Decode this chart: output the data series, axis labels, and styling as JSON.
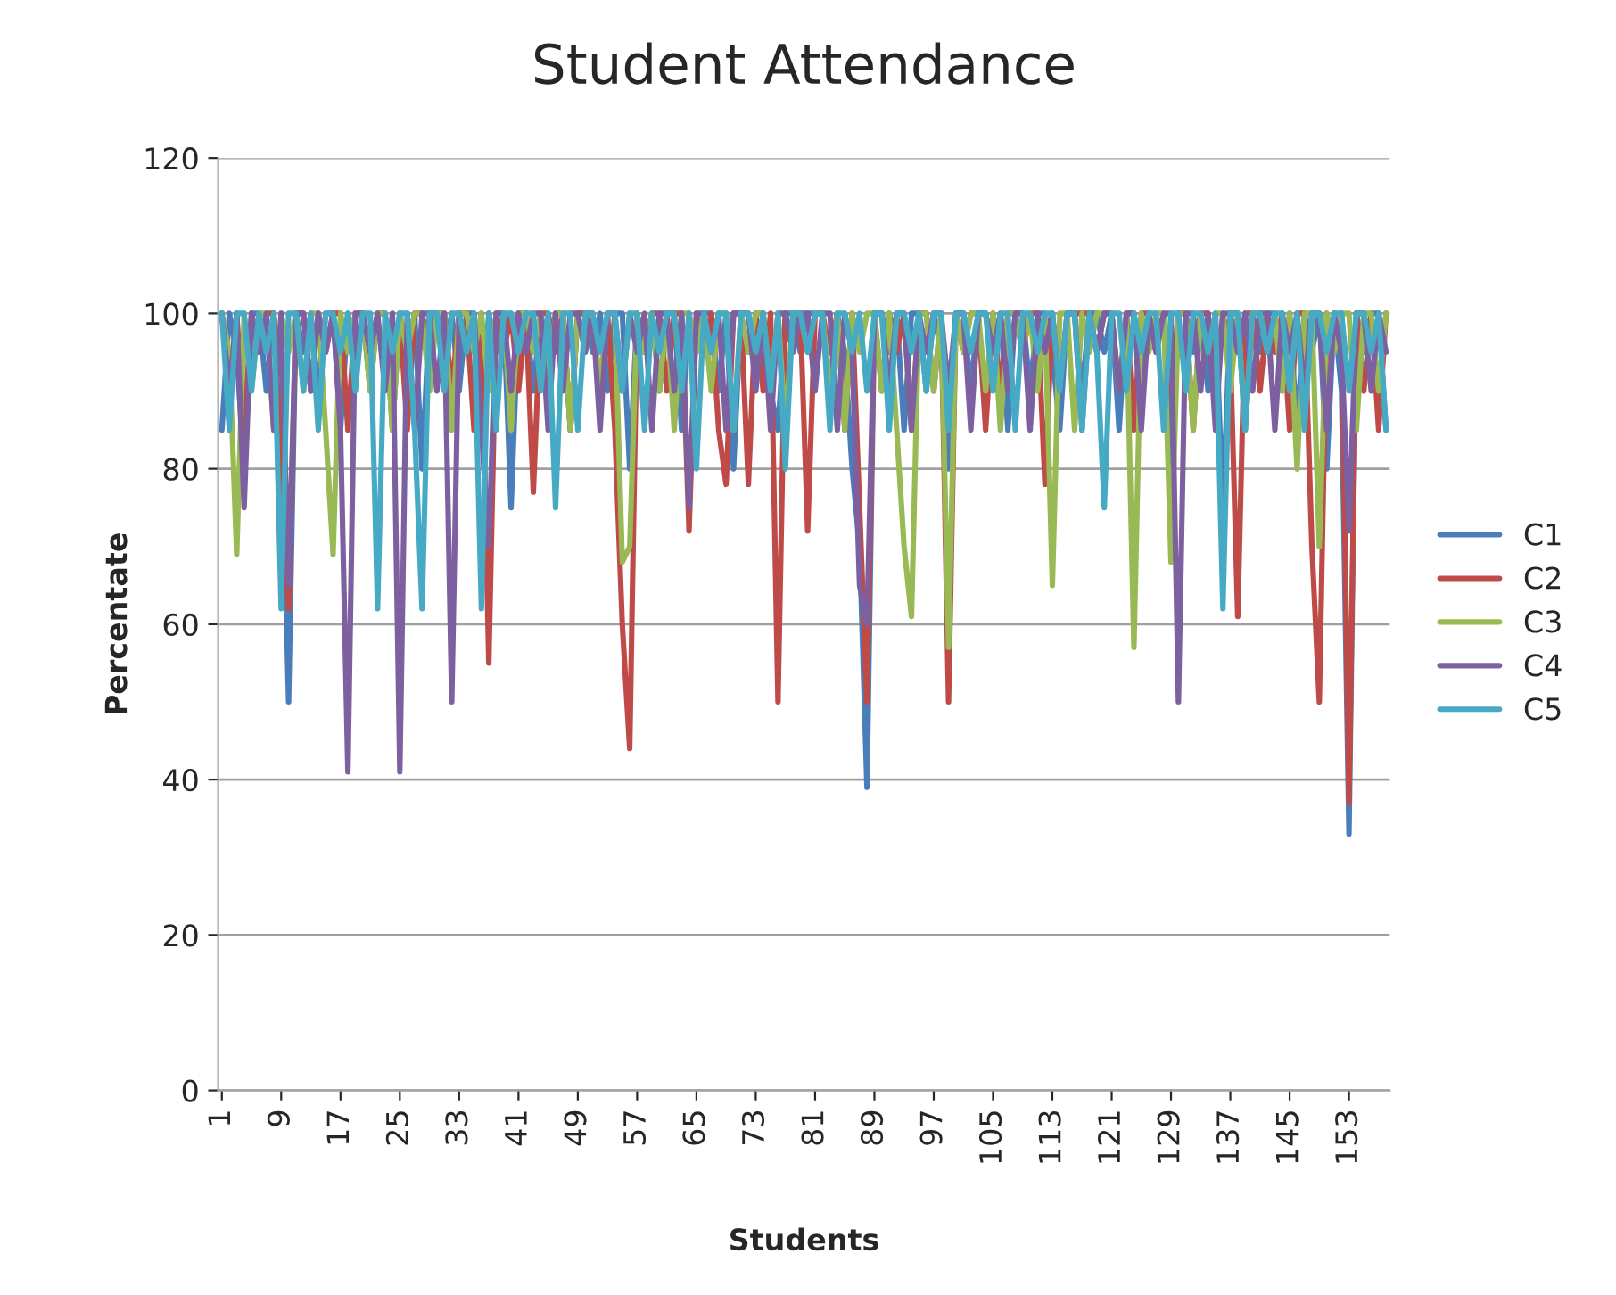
{
  "chart_data": {
    "type": "line",
    "title": "Student Attendance",
    "xlabel": "Students",
    "ylabel": "Percentate",
    "categories": [
      "1",
      null,
      null,
      null,
      null,
      null,
      null,
      null,
      "9",
      null,
      null,
      null,
      null,
      null,
      null,
      null,
      "17",
      null,
      null,
      null,
      null,
      null,
      null,
      null,
      "25",
      null,
      null,
      null,
      null,
      null,
      null,
      null,
      "33",
      null,
      null,
      null,
      null,
      null,
      null,
      null,
      "41",
      null,
      null,
      null,
      null,
      null,
      null,
      null,
      "49",
      null,
      null,
      null,
      null,
      null,
      null,
      null,
      "57",
      null,
      null,
      null,
      null,
      null,
      null,
      null,
      "65",
      null,
      null,
      null,
      null,
      null,
      null,
      null,
      "73",
      null,
      null,
      null,
      null,
      null,
      null,
      null,
      "81",
      null,
      null,
      null,
      null,
      null,
      null,
      null,
      "89",
      null,
      null,
      null,
      null,
      null,
      null,
      null,
      "97",
      null,
      null,
      null,
      null,
      null,
      null,
      null,
      "105",
      null,
      null,
      null,
      null,
      null,
      null,
      null,
      "113",
      null,
      null,
      null,
      null,
      null,
      null,
      null,
      "121",
      null,
      null,
      null,
      null,
      null,
      null,
      null,
      "129",
      null,
      null,
      null,
      null,
      null,
      null,
      null,
      "137",
      null,
      null,
      null,
      null,
      null,
      null,
      null,
      "145",
      null,
      null,
      null,
      null,
      null,
      null,
      null,
      "153",
      null,
      null,
      null,
      null,
      null
    ],
    "series": [
      {
        "name": "C1",
        "color": "#4a7ebb",
        "values": [
          85,
          100,
          95,
          80,
          100,
          100,
          90,
          100,
          88,
          50,
          100,
          95,
          100,
          90,
          100,
          100,
          85,
          100,
          95,
          100,
          90,
          100,
          100,
          85,
          100,
          95,
          100,
          80,
          100,
          100,
          95,
          100,
          90,
          100,
          100,
          85,
          100,
          95,
          100,
          75,
          100,
          100,
          90,
          100,
          95,
          100,
          100,
          85,
          100,
          100,
          95,
          100,
          90,
          100,
          100,
          80,
          100,
          95,
          100,
          90,
          100,
          100,
          85,
          100,
          95,
          100,
          100,
          90,
          100,
          80,
          100,
          95,
          100,
          100,
          90,
          85,
          100,
          100,
          95,
          100,
          100,
          100,
          90,
          100,
          95,
          80,
          70,
          39,
          100,
          100,
          95,
          100,
          85,
          100,
          100,
          90,
          100,
          95,
          80,
          100,
          100,
          90,
          100,
          100,
          95,
          100,
          85,
          100,
          100,
          90,
          100,
          100,
          95,
          85,
          100,
          100,
          90,
          100,
          100,
          95,
          100,
          85,
          100,
          100,
          90,
          100,
          95,
          100,
          80,
          100,
          100,
          95,
          100,
          90,
          100,
          75,
          100,
          100,
          85,
          100,
          95,
          100,
          100,
          90,
          100,
          85,
          100,
          95,
          100,
          80,
          100,
          90,
          33,
          100,
          95,
          100,
          100,
          85
        ]
      },
      {
        "name": "C2",
        "color": "#be4b48",
        "values": [
          100,
          90,
          100,
          85,
          100,
          95,
          100,
          100,
          80,
          62,
          100,
          100,
          90,
          100,
          95,
          100,
          100,
          85,
          100,
          100,
          95,
          100,
          100,
          90,
          100,
          85,
          100,
          100,
          95,
          100,
          100,
          90,
          100,
          100,
          85,
          100,
          55,
          100,
          95,
          100,
          90,
          100,
          77,
          100,
          100,
          95,
          100,
          85,
          100,
          100,
          100,
          90,
          100,
          85,
          60,
          44,
          100,
          95,
          100,
          100,
          90,
          100,
          100,
          72,
          100,
          95,
          100,
          85,
          78,
          100,
          100,
          78,
          100,
          90,
          100,
          50,
          100,
          95,
          100,
          72,
          100,
          100,
          95,
          100,
          85,
          100,
          75,
          50,
          100,
          90,
          100,
          95,
          100,
          85,
          100,
          100,
          90,
          100,
          50,
          100,
          95,
          100,
          100,
          85,
          100,
          90,
          100,
          100,
          95,
          100,
          100,
          78,
          100,
          90,
          100,
          100,
          null,
          100,
          95,
          100,
          100,
          90,
          100,
          85,
          100,
          100,
          95,
          100,
          90,
          100,
          100,
          85,
          100,
          100,
          90,
          100,
          95,
          61,
          100,
          100,
          90,
          100,
          95,
          100,
          85,
          100,
          100,
          70,
          50,
          100,
          95,
          100,
          37,
          100,
          90,
          100,
          85,
          100
        ]
      },
      {
        "name": "C3",
        "color": "#98b954",
        "values": [
          100,
          95,
          69,
          100,
          90,
          100,
          100,
          85,
          100,
          95,
          100,
          90,
          100,
          100,
          85,
          69,
          100,
          95,
          100,
          100,
          90,
          100,
          100,
          85,
          100,
          95,
          100,
          100,
          90,
          100,
          100,
          85,
          100,
          100,
          95,
          100,
          90,
          100,
          100,
          85,
          100,
          100,
          95,
          100,
          90,
          100,
          100,
          85,
          100,
          95,
          100,
          90,
          100,
          100,
          68,
          70,
          100,
          95,
          100,
          90,
          100,
          85,
          100,
          100,
          95,
          100,
          90,
          100,
          100,
          85,
          100,
          95,
          100,
          100,
          90,
          100,
          85,
          100,
          100,
          95,
          100,
          100,
          90,
          100,
          85,
          100,
          95,
          100,
          100,
          90,
          100,
          85,
          70,
          61,
          100,
          100,
          90,
          100,
          57,
          100,
          95,
          100,
          100,
          90,
          100,
          85,
          100,
          100,
          95,
          100,
          90,
          100,
          65,
          100,
          100,
          85,
          100,
          95,
          100,
          null,
          100,
          90,
          100,
          57,
          100,
          95,
          100,
          100,
          68,
          100,
          100,
          85,
          100,
          95,
          100,
          100,
          90,
          100,
          85,
          100,
          100,
          95,
          100,
          90,
          100,
          80,
          100,
          100,
          70,
          100,
          95,
          100,
          100,
          85,
          100,
          100,
          90,
          100
        ]
      },
      {
        "name": "C4",
        "color": "#7d60a0",
        "values": [
          100,
          90,
          100,
          75,
          100,
          95,
          100,
          85,
          100,
          65,
          100,
          100,
          90,
          100,
          95,
          100,
          85,
          41,
          100,
          100,
          95,
          100,
          90,
          100,
          41,
          100,
          85,
          100,
          100,
          90,
          100,
          50,
          100,
          95,
          100,
          85,
          70,
          100,
          100,
          90,
          100,
          95,
          100,
          100,
          85,
          100,
          90,
          100,
          100,
          95,
          100,
          85,
          100,
          100,
          90,
          100,
          95,
          100,
          85,
          100,
          100,
          90,
          100,
          75,
          100,
          100,
          95,
          100,
          85,
          100,
          100,
          100,
          90,
          100,
          85,
          100,
          100,
          95,
          100,
          100,
          90,
          100,
          100,
          85,
          100,
          95,
          65,
          60,
          100,
          100,
          90,
          100,
          100,
          85,
          100,
          95,
          100,
          100,
          90,
          100,
          100,
          85,
          100,
          100,
          95,
          100,
          90,
          100,
          100,
          85,
          100,
          95,
          100,
          90,
          100,
          100,
          85,
          100,
          95,
          100,
          100,
          90,
          100,
          100,
          85,
          100,
          95,
          100,
          100,
          50,
          100,
          100,
          90,
          100,
          85,
          100,
          100,
          95,
          100,
          90,
          100,
          100,
          85,
          100,
          95,
          100,
          90,
          100,
          100,
          85,
          100,
          95,
          72,
          100,
          100,
          90,
          100,
          95
        ]
      },
      {
        "name": "C5",
        "color": "#46aac5",
        "values": [
          100,
          85,
          100,
          100,
          90,
          100,
          95,
          100,
          62,
          100,
          100,
          90,
          100,
          85,
          100,
          100,
          95,
          100,
          90,
          100,
          100,
          62,
          100,
          95,
          100,
          100,
          85,
          62,
          100,
          100,
          90,
          100,
          100,
          95,
          100,
          62,
          100,
          85,
          100,
          100,
          95,
          100,
          100,
          90,
          100,
          75,
          100,
          100,
          85,
          100,
          100,
          95,
          100,
          100,
          90,
          100,
          100,
          85,
          100,
          95,
          100,
          100,
          90,
          100,
          80,
          100,
          95,
          100,
          100,
          85,
          100,
          100,
          95,
          100,
          90,
          100,
          80,
          100,
          100,
          95,
          100,
          100,
          85,
          100,
          100,
          95,
          100,
          90,
          100,
          100,
          85,
          100,
          100,
          95,
          100,
          90,
          100,
          100,
          85,
          100,
          100,
          95,
          100,
          100,
          90,
          100,
          100,
          85,
          100,
          100,
          95,
          100,
          100,
          90,
          100,
          100,
          85,
          100,
          95,
          75,
          100,
          100,
          90,
          100,
          95,
          100,
          100,
          85,
          100,
          100,
          90,
          100,
          100,
          95,
          100,
          62,
          100,
          100,
          85,
          100,
          100,
          95,
          100,
          100,
          90,
          100,
          85,
          100,
          100,
          95,
          100,
          100,
          90,
          100,
          100,
          95,
          100,
          85
        ]
      }
    ],
    "ylim": [
      0,
      120
    ],
    "yticks": [
      0,
      20,
      40,
      60,
      80,
      100,
      120
    ],
    "grid": "y",
    "legend": "right",
    "marker": "none",
    "line_style": "solid"
  }
}
